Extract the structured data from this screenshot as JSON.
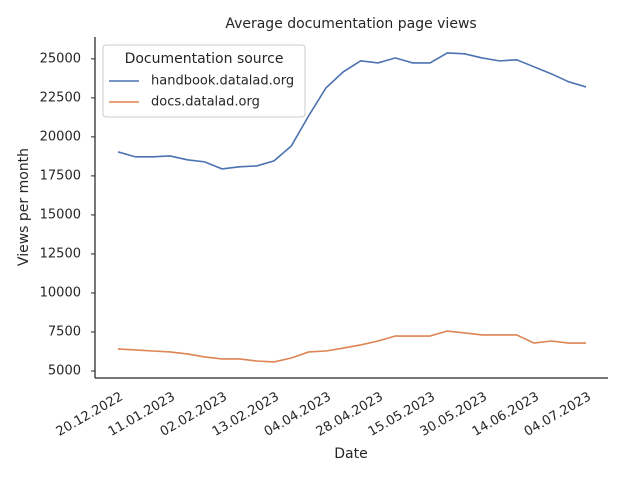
{
  "chart_data": {
    "type": "line",
    "title": "Average documentation page views",
    "xlabel": "Date",
    "ylabel": "Views per month",
    "categories": [
      "20.12.2022",
      null,
      null,
      "11.01.2023",
      null,
      null,
      "02.02.2023",
      null,
      null,
      "13.02.2023",
      null,
      null,
      "04.04.2023",
      null,
      null,
      "28.04.2023",
      null,
      null,
      "15.05.2023",
      null,
      null,
      "30.05.2023",
      null,
      null,
      "14.06.2023",
      null,
      null,
      "04.07.2023"
    ],
    "series": [
      {
        "name": "handbook.datalad.org",
        "color": "#4c72b0",
        "values": [
          19040,
          18720,
          18720,
          18780,
          18530,
          18400,
          17950,
          18080,
          18140,
          18460,
          19420,
          21350,
          23140,
          24170,
          24870,
          24740,
          25060,
          24740,
          24740,
          25380,
          25320,
          25060,
          24870,
          24940,
          24490,
          24040,
          23530,
          23200
        ]
      },
      {
        "name": "docs.datalad.org",
        "color": "#dd8452",
        "values": [
          6410,
          6350,
          6280,
          6220,
          6090,
          5900,
          5770,
          5770,
          5640,
          5580,
          5830,
          6220,
          6280,
          6470,
          6670,
          6920,
          7240,
          7240,
          7240,
          7560,
          7440,
          7310,
          7310,
          7310,
          6790,
          6920,
          6790,
          6790
        ]
      }
    ],
    "legend_title": "Documentation source",
    "legend": "upper left",
    "ylim": [
      4550,
      26400
    ],
    "yticks": [
      5000,
      7500,
      10000,
      12500,
      15000,
      17500,
      20000,
      22500,
      25000
    ]
  }
}
